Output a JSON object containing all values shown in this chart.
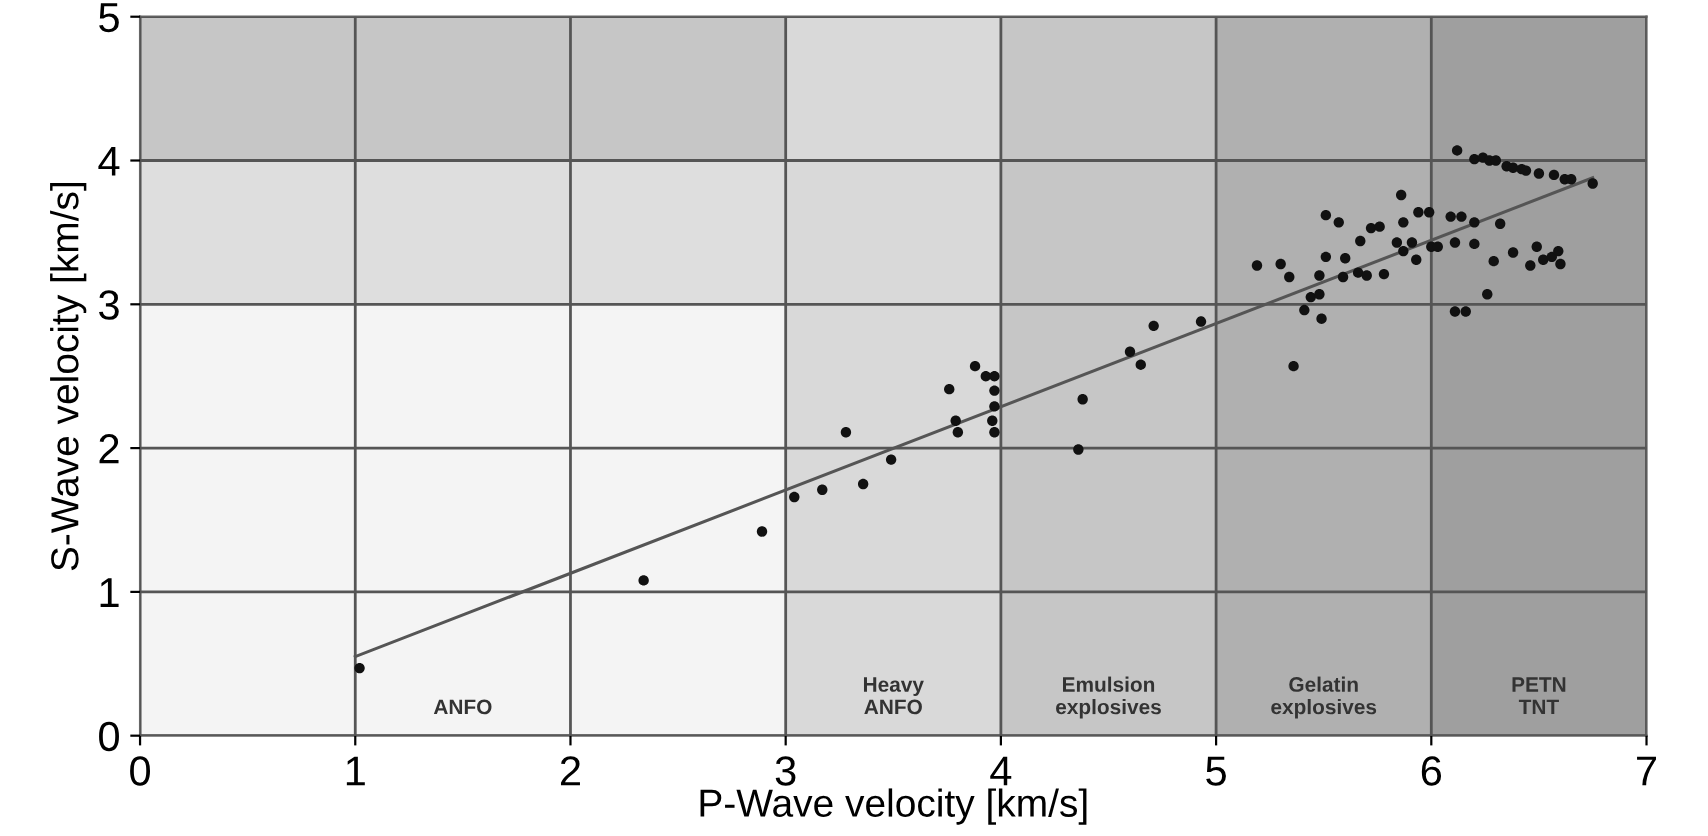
{
  "chart_data": {
    "type": "scatter",
    "xlabel": "P-Wave velocity [km/s]",
    "ylabel": "S-Wave velocity [km/s]",
    "xlim": [
      0,
      7
    ],
    "ylim": [
      0,
      5
    ],
    "xticks": [
      0,
      1,
      2,
      3,
      4,
      5,
      6,
      7
    ],
    "yticks": [
      0,
      1,
      2,
      3,
      4,
      5
    ],
    "grid": true,
    "bands": [
      {
        "axis": "x",
        "from": 0,
        "to": 3,
        "label": "ANFO",
        "color": "#f4f4f4"
      },
      {
        "axis": "y",
        "from": 3,
        "to": 4,
        "color": "#dedede"
      },
      {
        "axis": "y",
        "from": 4,
        "to": 5,
        "color": "#c6c6c6"
      },
      {
        "axis": "x",
        "from": 3,
        "to": 4,
        "label": "Heavy\nANFO",
        "color": "#d9d9d9"
      },
      {
        "axis": "x",
        "from": 4,
        "to": 5,
        "label": "Emulsion\nexplosives",
        "color": "#c6c6c6"
      },
      {
        "axis": "x",
        "from": 5,
        "to": 6,
        "label": "Gelatin\nexplosives",
        "color": "#b0b0b0"
      },
      {
        "axis": "x",
        "from": 6,
        "to": 7,
        "label": "PETN\nTNT",
        "color": "#9f9f9f"
      }
    ],
    "series": [
      {
        "type": "line",
        "marker": "none",
        "color": "#555555",
        "x": [
          1.0,
          6.75
        ],
        "values": [
          0.55,
          3.88
        ]
      },
      {
        "marker": "circle",
        "color": "#111111",
        "x": [
          1.02,
          2.34,
          2.89,
          3.04,
          3.17,
          3.28,
          3.36,
          3.49,
          3.76,
          3.79,
          3.8,
          3.88,
          3.93,
          3.97,
          3.97,
          3.97,
          3.96,
          3.97,
          4.36,
          4.38,
          4.6,
          4.65,
          4.71,
          4.93,
          5.19,
          5.3,
          5.34,
          5.36,
          5.41,
          5.44,
          5.48,
          5.49,
          5.48,
          5.51,
          5.51,
          5.57,
          5.59,
          5.6,
          5.66,
          5.67,
          5.7,
          5.72,
          5.76,
          5.78,
          5.86,
          5.84,
          5.87,
          5.87,
          5.91,
          5.94,
          5.93,
          5.99,
          6.0,
          6.03,
          6.09,
          6.14,
          6.12,
          6.11,
          6.11,
          6.16,
          6.2,
          6.2,
          6.2,
          6.24,
          6.27,
          6.3,
          6.32,
          6.29,
          6.26,
          6.35,
          6.38,
          6.38,
          6.42,
          6.44,
          6.46,
          6.49,
          6.5,
          6.52,
          6.56,
          6.57,
          6.59,
          6.6,
          6.62,
          6.65,
          6.75
        ],
        "values": [
          0.47,
          1.08,
          1.42,
          1.66,
          1.71,
          2.11,
          1.75,
          1.92,
          2.41,
          2.19,
          2.11,
          2.57,
          2.5,
          2.5,
          2.4,
          2.29,
          2.19,
          2.11,
          1.99,
          2.34,
          2.67,
          2.58,
          2.85,
          2.88,
          3.27,
          3.28,
          3.19,
          2.57,
          2.96,
          3.05,
          3.07,
          2.9,
          3.2,
          3.33,
          3.62,
          3.57,
          3.19,
          3.32,
          3.22,
          3.44,
          3.2,
          3.53,
          3.54,
          3.21,
          3.76,
          3.43,
          3.57,
          3.37,
          3.43,
          3.64,
          3.31,
          3.64,
          3.4,
          3.4,
          3.61,
          3.61,
          4.07,
          3.43,
          2.95,
          2.95,
          3.42,
          3.57,
          4.01,
          4.02,
          4.0,
          4.0,
          3.56,
          3.3,
          3.07,
          3.96,
          3.95,
          3.36,
          3.94,
          3.93,
          3.27,
          3.4,
          3.91,
          3.31,
          3.33,
          3.9,
          3.37,
          3.28,
          3.87,
          3.87,
          3.84
        ]
      }
    ]
  }
}
